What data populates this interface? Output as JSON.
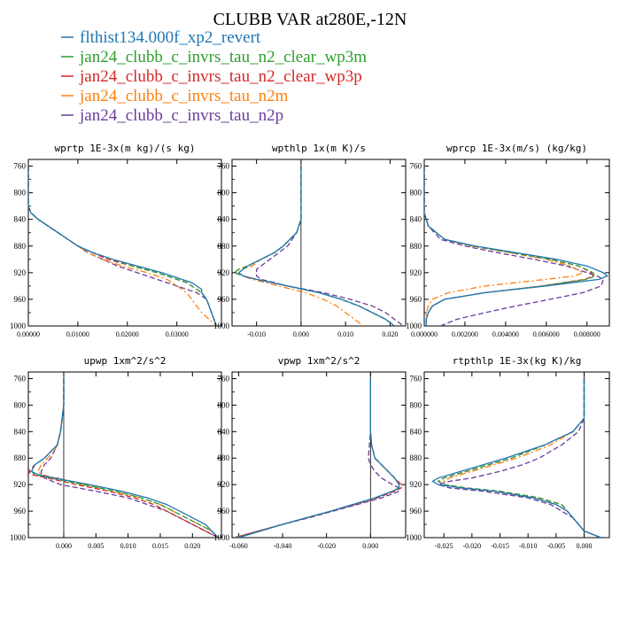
{
  "title": "CLUBB VAR at280E,-12N",
  "legend": [
    {
      "name": "flthist134.000f_xp2_revert",
      "color": "#1f77b4",
      "dash": "solid"
    },
    {
      "name": "jan24_clubb_c_invrs_tau_n2_clear_wp3m",
      "color": "#2ca02c",
      "dash": "dashed"
    },
    {
      "name": "jan24_clubb_c_invrs_tau_n2_clear_wp3p",
      "color": "#d62728",
      "dash": "dashed"
    },
    {
      "name": "jan24_clubb_c_invrs_tau_n2m",
      "color": "#ff7f0e",
      "dash": "dashdot"
    },
    {
      "name": "jan24_clubb_c_invrs_tau_n2p",
      "color": "#6a3d9a",
      "dash": "dashed"
    }
  ],
  "chart_data": [
    {
      "type": "line",
      "title": "wprtp  1E-3x(m kg)/(s kg)",
      "xlim": [
        0,
        0.039
      ],
      "ylim": [
        1000,
        750
      ],
      "xticks": [
        0,
        0.01,
        0.02,
        0.03
      ],
      "xtick_labels": [
        "0.00000",
        "0.01000",
        "0.02000",
        "0.03000"
      ],
      "yticks": [
        760,
        800,
        840,
        880,
        920,
        960,
        1000
      ],
      "y": [
        760,
        800,
        820,
        830,
        840,
        850,
        860,
        870,
        880,
        890,
        900,
        910,
        920,
        930,
        935,
        940,
        945,
        950,
        960,
        980,
        1000
      ],
      "series": [
        {
          "values": [
            0,
            0,
            0,
            0.0005,
            0.002,
            0.004,
            0.006,
            0.008,
            0.01,
            0.013,
            0.017,
            0.022,
            0.027,
            0.031,
            0.033,
            0.034,
            0.035,
            0.035,
            0.036,
            0.037,
            0.038
          ]
        },
        {
          "values": [
            0,
            0,
            0,
            0.0005,
            0.002,
            0.004,
            0.006,
            0.008,
            0.01,
            0.013,
            0.017,
            0.021,
            0.026,
            0.03,
            0.032,
            0.033,
            0.034,
            0.035,
            0.036,
            0.037,
            0.038
          ]
        },
        {
          "values": [
            0,
            0,
            0,
            0.0005,
            0.002,
            0.004,
            0.006,
            0.008,
            0.01,
            0.013,
            0.016,
            0.021,
            0.026,
            0.03,
            0.032,
            0.033,
            0.034,
            0.035,
            0.036,
            0.037,
            0.038
          ]
        },
        {
          "values": [
            0,
            0,
            0,
            0.0005,
            0.002,
            0.004,
            0.006,
            0.008,
            0.01,
            0.012,
            0.015,
            0.019,
            0.024,
            0.028,
            0.029,
            0.03,
            0.031,
            0.032,
            0.033,
            0.035,
            0.038
          ]
        },
        {
          "values": [
            0,
            0,
            0,
            0.0005,
            0.002,
            0.004,
            0.006,
            0.008,
            0.01,
            0.012,
            0.015,
            0.018,
            0.022,
            0.026,
            0.028,
            0.03,
            0.032,
            0.034,
            0.036,
            0.037,
            0.038
          ]
        }
      ]
    },
    {
      "type": "line",
      "title": "wpthlp  1x(m K)/s",
      "xlim": [
        -0.0155,
        0.0235
      ],
      "ylim": [
        1000,
        750
      ],
      "xticks": [
        -0.01,
        0,
        0.01,
        0.02
      ],
      "xtick_labels": [
        "-0.010",
        "0.000",
        "0.010",
        "0.020"
      ],
      "yticks": [
        760,
        800,
        840,
        880,
        920,
        960,
        1000
      ],
      "y": [
        760,
        800,
        840,
        860,
        880,
        890,
        900,
        910,
        915,
        920,
        925,
        930,
        940,
        950,
        960,
        970,
        980,
        990,
        1000
      ],
      "series": [
        {
          "values": [
            0,
            0,
            0,
            -0.001,
            -0.004,
            -0.006,
            -0.009,
            -0.012,
            -0.013,
            -0.014,
            -0.013,
            -0.01,
            -0.003,
            0.004,
            0.009,
            0.013,
            0.016,
            0.019,
            0.021
          ]
        },
        {
          "values": [
            0,
            0,
            0,
            -0.001,
            -0.004,
            -0.006,
            -0.009,
            -0.012,
            -0.014,
            -0.015,
            -0.013,
            -0.01,
            -0.003,
            0.004,
            0.009,
            0.013,
            0.016,
            0.019,
            0.021
          ]
        },
        {
          "values": [
            0,
            0,
            0,
            -0.001,
            -0.004,
            -0.006,
            -0.009,
            -0.012,
            -0.014,
            -0.015,
            -0.013,
            -0.01,
            -0.003,
            0.004,
            0.009,
            0.013,
            0.016,
            0.019,
            0.021
          ]
        },
        {
          "values": [
            0,
            0,
            0,
            -0.001,
            -0.004,
            -0.006,
            -0.009,
            -0.011,
            -0.013,
            -0.014,
            -0.013,
            -0.011,
            -0.005,
            0.001,
            0.005,
            0.008,
            0.01,
            0.012,
            0.014
          ]
        },
        {
          "values": [
            0,
            0,
            0,
            -0.001,
            -0.003,
            -0.005,
            -0.007,
            -0.009,
            -0.01,
            -0.01,
            -0.01,
            -0.009,
            -0.003,
            0.005,
            0.011,
            0.016,
            0.019,
            0.021,
            0.023
          ]
        }
      ]
    },
    {
      "type": "line",
      "title": "wprcp  1E-3x(m/s) (kg/kg)",
      "xlim": [
        0,
        0.0091
      ],
      "ylim": [
        1000,
        750
      ],
      "xticks": [
        0,
        0.002,
        0.004,
        0.006,
        0.008
      ],
      "xtick_labels": [
        "0.000000",
        "0.002000",
        "0.004000",
        "0.006000",
        "0.008000"
      ],
      "yticks": [
        760,
        800,
        840,
        880,
        920,
        960,
        1000
      ],
      "y": [
        760,
        800,
        830,
        850,
        870,
        880,
        890,
        900,
        910,
        920,
        925,
        930,
        940,
        950,
        960,
        970,
        980,
        990,
        1000
      ],
      "series": [
        {
          "values": [
            0,
            0,
            0,
            0.0002,
            0.001,
            0.0025,
            0.0045,
            0.0065,
            0.008,
            0.0088,
            0.009,
            0.0086,
            0.006,
            0.003,
            0.001,
            0.0004,
            0.0002,
            0.0001,
            0.0001
          ]
        },
        {
          "values": [
            0,
            0,
            0,
            0.0002,
            0.001,
            0.0024,
            0.0043,
            0.0062,
            0.0076,
            0.0083,
            0.0084,
            0.008,
            0.0058,
            0.003,
            0.001,
            0.0004,
            0.0002,
            0.0001,
            0.0001
          ]
        },
        {
          "values": [
            0,
            0,
            0,
            0.0002,
            0.001,
            0.0024,
            0.0043,
            0.0062,
            0.0076,
            0.0082,
            0.0083,
            0.0079,
            0.0058,
            0.003,
            0.001,
            0.0004,
            0.0002,
            0.0001,
            0.0001
          ]
        },
        {
          "values": [
            0,
            0,
            0,
            0.0002,
            0.001,
            0.0023,
            0.0042,
            0.006,
            0.0072,
            0.0078,
            0.0074,
            0.006,
            0.003,
            0.0012,
            0.0004,
            0.0002,
            0.0001,
            0.0001,
            0.0001
          ]
        },
        {
          "values": [
            0,
            0,
            0,
            0.0002,
            0.0008,
            0.002,
            0.0036,
            0.0054,
            0.007,
            0.008,
            0.0085,
            0.0088,
            0.0087,
            0.0078,
            0.0062,
            0.0045,
            0.003,
            0.0016,
            0.0008
          ]
        }
      ]
    },
    {
      "type": "line",
      "title": "upwp  1xm^2/s^2",
      "xlim": [
        -0.0055,
        0.0245
      ],
      "ylim": [
        1000,
        750
      ],
      "xticks": [
        0,
        0.005,
        0.01,
        0.015,
        0.02
      ],
      "xtick_labels": [
        "0.000",
        "0.005",
        "0.010",
        "0.015",
        "0.020"
      ],
      "yticks": [
        760,
        800,
        840,
        880,
        920,
        960,
        1000
      ],
      "y": [
        760,
        800,
        840,
        860,
        870,
        880,
        890,
        900,
        905,
        910,
        920,
        930,
        940,
        950,
        960,
        970,
        980,
        990,
        1000
      ],
      "series": [
        {
          "values": [
            0,
            0,
            -0.0005,
            -0.001,
            -0.002,
            -0.003,
            -0.0045,
            -0.005,
            -0.004,
            -0.0015,
            0.004,
            0.009,
            0.013,
            0.016,
            0.018,
            0.02,
            0.022,
            0.023,
            0.024
          ]
        },
        {
          "values": [
            0,
            0,
            -0.0005,
            -0.001,
            -0.002,
            -0.003,
            -0.0045,
            -0.005,
            -0.0045,
            -0.002,
            0.003,
            0.008,
            0.012,
            0.015,
            0.017,
            0.019,
            0.021,
            0.023,
            0.024
          ]
        },
        {
          "values": [
            0,
            0,
            -0.0005,
            -0.001,
            -0.002,
            -0.003,
            -0.0045,
            -0.0055,
            -0.005,
            -0.0025,
            0.002,
            0.007,
            0.011,
            0.014,
            0.016,
            0.018,
            0.02,
            0.022,
            0.024
          ]
        },
        {
          "values": [
            0,
            0,
            -0.0005,
            -0.001,
            -0.0015,
            -0.0025,
            -0.0035,
            -0.004,
            -0.0035,
            -0.001,
            0.003,
            0.008,
            0.012,
            0.015,
            0.017,
            0.019,
            0.021,
            0.023,
            0.024
          ]
        },
        {
          "values": [
            0,
            0,
            -0.0005,
            -0.001,
            -0.0015,
            -0.002,
            -0.003,
            -0.0035,
            -0.0035,
            -0.003,
            -0.0005,
            0.005,
            0.01,
            0.013,
            0.016,
            0.018,
            0.02,
            0.022,
            0.024
          ]
        }
      ]
    },
    {
      "type": "line",
      "title": "vpwp  1xm^2/s^2",
      "xlim": [
        -0.063,
        0.016
      ],
      "ylim": [
        1000,
        750
      ],
      "xticks": [
        -0.06,
        -0.04,
        -0.02,
        0
      ],
      "xtick_labels": [
        "-0.060",
        "-0.040",
        "-0.020",
        "0.000"
      ],
      "yticks": [
        760,
        800,
        840,
        880,
        920,
        960,
        1000
      ],
      "y": [
        760,
        800,
        840,
        860,
        880,
        890,
        900,
        910,
        920,
        925,
        930,
        940,
        950,
        960,
        970,
        980,
        990,
        1000
      ],
      "series": [
        {
          "values": [
            0,
            0,
            0,
            0.0005,
            0.002,
            0.005,
            0.008,
            0.011,
            0.013,
            0.013,
            0.01,
            0.002,
            -0.008,
            -0.018,
            -0.029,
            -0.04,
            -0.05,
            -0.06
          ]
        },
        {
          "values": [
            0,
            0,
            0,
            0.0005,
            0.002,
            0.005,
            0.008,
            0.011,
            0.013,
            0.013,
            0.01,
            0.002,
            -0.008,
            -0.018,
            -0.029,
            -0.04,
            -0.05,
            -0.061
          ]
        },
        {
          "values": [
            0,
            0,
            0,
            0.0005,
            0.002,
            0.005,
            0.008,
            0.011,
            0.014,
            0.014,
            0.011,
            0.003,
            -0.007,
            -0.018,
            -0.029,
            -0.04,
            -0.051,
            -0.062
          ]
        },
        {
          "values": [
            0,
            0,
            0,
            0.0005,
            0.002,
            0.005,
            0.008,
            0.011,
            0.013,
            0.013,
            0.01,
            0.002,
            -0.008,
            -0.018,
            -0.029,
            -0.04,
            -0.05,
            -0.061
          ]
        },
        {
          "values": [
            0,
            0,
            0,
            -0.0005,
            -0.001,
            0,
            0.002,
            0.005,
            0.01,
            0.013,
            0.013,
            0.005,
            -0.006,
            -0.017,
            -0.028,
            -0.04,
            -0.051,
            -0.062
          ]
        }
      ]
    },
    {
      "type": "line",
      "title": "rtpthlp  1E-3x(kg K)/kg",
      "xlim": [
        -0.0285,
        0.0045
      ],
      "ylim": [
        1000,
        750
      ],
      "xticks": [
        -0.025,
        -0.02,
        -0.015,
        -0.01,
        -0.005,
        0
      ],
      "xtick_labels": [
        "-0.025",
        "-0.020",
        "-0.015",
        "-0.010",
        "-0.005",
        "0.000"
      ],
      "yticks": [
        760,
        800,
        840,
        880,
        920,
        960,
        1000
      ],
      "y": [
        760,
        800,
        820,
        840,
        860,
        880,
        890,
        900,
        910,
        915,
        920,
        925,
        930,
        940,
        950,
        960,
        970,
        980,
        990,
        1000
      ],
      "series": [
        {
          "values": [
            0,
            0,
            0,
            -0.002,
            -0.007,
            -0.014,
            -0.018,
            -0.022,
            -0.026,
            -0.027,
            -0.026,
            -0.022,
            -0.016,
            -0.009,
            -0.005,
            -0.003,
            -0.002,
            -0.001,
            0.0,
            0.003
          ]
        },
        {
          "values": [
            0,
            0,
            0,
            -0.002,
            -0.007,
            -0.013,
            -0.017,
            -0.021,
            -0.025,
            -0.026,
            -0.025,
            -0.021,
            -0.015,
            -0.008,
            -0.004,
            -0.003,
            -0.002,
            -0.001,
            0.0,
            0.003
          ]
        },
        {
          "values": [
            0,
            0,
            0,
            -0.002,
            -0.007,
            -0.013,
            -0.017,
            -0.021,
            -0.025,
            -0.026,
            -0.025,
            -0.021,
            -0.015,
            -0.008,
            -0.004,
            -0.003,
            -0.002,
            -0.001,
            0.0,
            0.003
          ]
        },
        {
          "values": [
            0,
            0,
            0,
            -0.002,
            -0.006,
            -0.012,
            -0.016,
            -0.02,
            -0.024,
            -0.025,
            -0.025,
            -0.022,
            -0.016,
            -0.009,
            -0.005,
            -0.003,
            -0.002,
            -0.001,
            0.0,
            0.003
          ]
        },
        {
          "values": [
            0,
            0,
            0,
            -0.001,
            -0.004,
            -0.008,
            -0.011,
            -0.015,
            -0.02,
            -0.024,
            -0.026,
            -0.024,
            -0.018,
            -0.01,
            -0.006,
            -0.004,
            -0.002,
            -0.001,
            0.0,
            0.003
          ]
        }
      ]
    }
  ]
}
